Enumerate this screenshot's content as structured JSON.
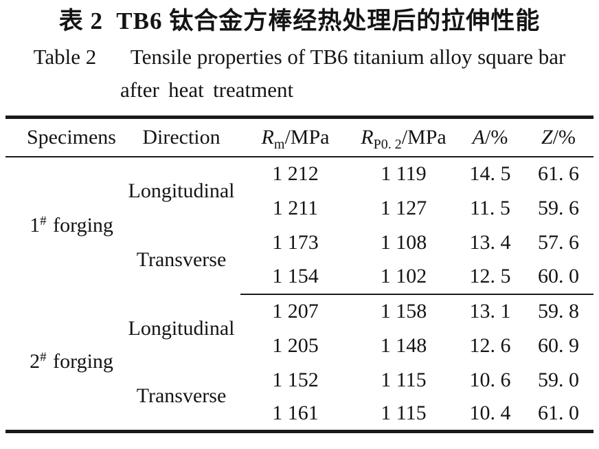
{
  "titles": {
    "chinese_label": "表 2",
    "chinese_text": "TB6 钛合金方棒经热处理后的拉伸性能",
    "english_label": "Table 2",
    "english_line1": "Tensile properties of TB6 titanium alloy square bar",
    "english_line2": "after heat treatment"
  },
  "table": {
    "headers": {
      "specimens": "Specimens",
      "direction": "Direction",
      "rm": {
        "symbol": "R",
        "subscript": "m",
        "unit": "/MPa"
      },
      "rp02": {
        "symbol": "R",
        "subscript": "P0. 2",
        "unit": "/MPa"
      },
      "a": {
        "symbol": "A",
        "unit": "/%"
      },
      "z": {
        "symbol": "Z",
        "unit": "/%"
      }
    },
    "groups": [
      {
        "specimen": {
          "num": "1",
          "marker": "#",
          "word": "forging"
        },
        "directions": [
          {
            "label": "Longitudinal",
            "rows": [
              [
                "1 212",
                "1 119",
                "14. 5",
                "61. 6"
              ],
              [
                "1 211",
                "1 127",
                "11. 5",
                "59. 6"
              ]
            ]
          },
          {
            "label": "Transverse",
            "rows": [
              [
                "1 173",
                "1 108",
                "13. 4",
                "57. 6"
              ],
              [
                "1 154",
                "1 102",
                "12. 5",
                "60. 0"
              ]
            ]
          }
        ]
      },
      {
        "specimen": {
          "num": "2",
          "marker": "#",
          "word": "forging"
        },
        "directions": [
          {
            "label": "Longitudinal",
            "rows": [
              [
                "1 207",
                "1 158",
                "13. 1",
                "59. 8"
              ],
              [
                "1 205",
                "1 148",
                "12. 6",
                "60. 9"
              ]
            ]
          },
          {
            "label": "Transverse",
            "rows": [
              [
                "1 152",
                "1 115",
                "10. 6",
                "59. 0"
              ],
              [
                "1 161",
                "1 115",
                "10. 4",
                "61. 0"
              ]
            ]
          }
        ]
      }
    ]
  },
  "colors": {
    "text": "#141414",
    "rule": "#1a1a1a",
    "background": "#ffffff"
  }
}
